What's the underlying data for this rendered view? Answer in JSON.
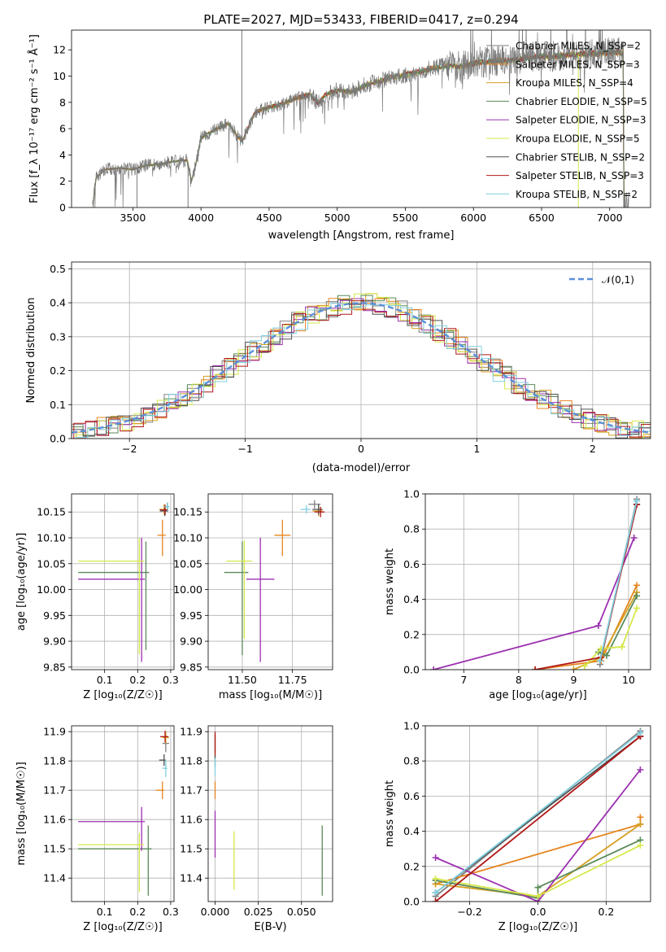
{
  "title": "PLATE=2027, MJD=53433, FIBERID=0417, z=0.294",
  "colors": [
    "#808080",
    "#e6841e",
    "#d4a020",
    "#5a8a5a",
    "#9c30b0",
    "#d6e84a",
    "#505050",
    "#b01818",
    "#80d0e0"
  ],
  "chart_data": [
    {
      "type": "line",
      "panel": "spectrum",
      "xlabel": "wavelength [Angstrom, rest frame]",
      "ylabel": "Flux [f_λ 10⁻¹⁷ erg cm⁻² s⁻¹ Å⁻¹]",
      "xlim": [
        3050,
        7300
      ],
      "ylim": [
        0,
        13.5
      ],
      "xticks": [
        "3500",
        "4000",
        "4500",
        "5000",
        "5500",
        "6000",
        "6500",
        "7000"
      ],
      "yticks": [
        "0",
        "2",
        "4",
        "6",
        "8",
        "10",
        "12"
      ],
      "legend_position": "right",
      "legend": [
        "Chabrier MILES, N_SSP=2",
        "Salpeter MILES, N_SSP=3",
        "Kroupa MILES, N_SSP=4",
        "Chabrier ELODIE, N_SSP=5",
        "Salpeter ELODIE, N_SSP=3",
        "Kroupa ELODIE, N_SSP=5",
        "Chabrier STELIB, N_SSP=2",
        "Salpeter STELIB, N_SSP=3",
        "Kroupa STELIB, N_SSP=2"
      ],
      "continuum": [
        [
          3200,
          0
        ],
        [
          3210,
          0.5
        ],
        [
          3230,
          2.3
        ],
        [
          3300,
          2.9
        ],
        [
          3400,
          3.0
        ],
        [
          3500,
          2.9
        ],
        [
          3600,
          3.2
        ],
        [
          3700,
          3.3
        ],
        [
          3800,
          3.5
        ],
        [
          3900,
          3.6
        ],
        [
          3930,
          2.0
        ],
        [
          3960,
          3.2
        ],
        [
          4000,
          5.3
        ],
        [
          4100,
          5.9
        ],
        [
          4200,
          6.4
        ],
        [
          4300,
          5.0
        ],
        [
          4400,
          7.3
        ],
        [
          4500,
          7.6
        ],
        [
          4600,
          7.9
        ],
        [
          4700,
          8.3
        ],
        [
          4800,
          8.6
        ],
        [
          4860,
          7.9
        ],
        [
          4900,
          8.5
        ],
        [
          5000,
          8.9
        ],
        [
          5100,
          8.8
        ],
        [
          5200,
          9.3
        ],
        [
          5300,
          9.6
        ],
        [
          5400,
          9.9
        ],
        [
          5500,
          10.1
        ],
        [
          5600,
          10.3
        ],
        [
          5700,
          10.6
        ],
        [
          5800,
          10.8
        ],
        [
          5900,
          10.7
        ],
        [
          6000,
          11.0
        ],
        [
          6100,
          11.1
        ],
        [
          6200,
          11.2
        ],
        [
          6300,
          11.2
        ],
        [
          6400,
          11.4
        ],
        [
          6500,
          11.5
        ],
        [
          6600,
          11.5
        ],
        [
          6700,
          11.6
        ],
        [
          6800,
          11.7
        ],
        [
          6900,
          11.7
        ],
        [
          7000,
          11.8
        ],
        [
          7100,
          11.8
        ]
      ]
    },
    {
      "type": "line",
      "panel": "residual-histogram",
      "xlabel": "(data-model)/error",
      "ylabel": "Normed distribution",
      "xlim": [
        -2.5,
        2.5
      ],
      "ylim": [
        0,
        0.52
      ],
      "xticks": [
        "−2",
        "−1",
        "0",
        "1",
        "2"
      ],
      "yticks": [
        "0.0",
        "0.1",
        "0.2",
        "0.3",
        "0.4",
        "0.5"
      ],
      "legend": [
        "𝒩(0,1)"
      ],
      "legend_position": "top-right",
      "gaussian": {
        "mean": 0,
        "sigma": 1
      }
    },
    {
      "type": "scatter",
      "panel": "age-vs-Z",
      "xlabel": "Z [log₁₀(Z/Z☉)]",
      "ylabel": "age  [log₁₀(age/yr)]",
      "xlim": [
        0,
        0.31
      ],
      "ylim": [
        9.845,
        10.185
      ],
      "xticks": [
        "0.1",
        "0.2",
        "0.3"
      ],
      "yticks": [
        "9.85",
        "9.90",
        "9.95",
        "10.00",
        "10.05",
        "10.10",
        "10.15"
      ],
      "points": [
        {
          "x": 0.29,
          "y": 10.16,
          "xerr": [
            0.01,
            0.005
          ],
          "yerr": [
            0.008,
            0.008
          ]
        },
        {
          "x": 0.275,
          "y": 10.105,
          "xerr": [
            0.015,
            0.01
          ],
          "yerr": [
            0.04,
            0.03
          ]
        },
        {
          "x": 0.28,
          "y": 10.155,
          "xerr": [
            0.015,
            0.01
          ],
          "yerr": [
            0.01,
            0.01
          ]
        },
        {
          "x": 0.225,
          "y": 10.033,
          "xerr": [
            0.205,
            0.01
          ],
          "yerr": [
            0.15,
            0.06
          ]
        },
        {
          "x": 0.212,
          "y": 10.02,
          "xerr": [
            0.192,
            0.01
          ],
          "yerr": [
            0.16,
            0.08
          ]
        },
        {
          "x": 0.205,
          "y": 10.055,
          "xerr": [
            0.185,
            0.015
          ],
          "yerr": [
            0.18,
            0.045
          ]
        },
        {
          "x": 0.282,
          "y": 10.152,
          "xerr": [
            0.015,
            0.01
          ],
          "yerr": [
            0.01,
            0.01
          ]
        },
        {
          "x": 0.283,
          "y": 10.154,
          "xerr": [
            0.015,
            0.01
          ],
          "yerr": [
            0.01,
            0.01
          ]
        },
        {
          "x": 0.291,
          "y": 10.16,
          "xerr": [
            0.01,
            0.005
          ],
          "yerr": [
            0.008,
            0.008
          ]
        }
      ]
    },
    {
      "type": "scatter",
      "panel": "age-vs-mass",
      "xlabel": "mass [log₁₀(M/M☉)]",
      "ylabel": "",
      "xlim": [
        11.33,
        11.95
      ],
      "ylim": [
        9.845,
        10.185
      ],
      "xticks": [
        "11.50",
        "11.75"
      ],
      "yticks": [
        "9.85",
        "9.90",
        "9.95",
        "10.00",
        "10.05",
        "10.10",
        "10.15"
      ],
      "points": [
        {
          "x": 11.86,
          "y": 10.165,
          "xerr": [
            0.03,
            0.03
          ],
          "yerr": [
            0.008,
            0.008
          ]
        },
        {
          "x": 11.7,
          "y": 10.105,
          "xerr": [
            0.04,
            0.04
          ],
          "yerr": [
            0.04,
            0.03
          ]
        },
        {
          "x": 11.88,
          "y": 10.152,
          "xerr": [
            0.03,
            0.02
          ],
          "yerr": [
            0.01,
            0.01
          ]
        },
        {
          "x": 11.5,
          "y": 10.033,
          "xerr": [
            0.09,
            0.03
          ],
          "yerr": [
            0.16,
            0.06
          ]
        },
        {
          "x": 11.59,
          "y": 10.02,
          "xerr": [
            0.07,
            0.07
          ],
          "yerr": [
            0.16,
            0.08
          ]
        },
        {
          "x": 11.51,
          "y": 10.055,
          "xerr": [
            0.09,
            0.04
          ],
          "yerr": [
            0.15,
            0.04
          ]
        },
        {
          "x": 11.88,
          "y": 10.155,
          "xerr": [
            0.03,
            0.02
          ],
          "yerr": [
            0.01,
            0.01
          ]
        },
        {
          "x": 11.89,
          "y": 10.15,
          "xerr": [
            0.03,
            0.02
          ],
          "yerr": [
            0.01,
            0.01
          ]
        },
        {
          "x": 11.82,
          "y": 10.155,
          "xerr": [
            0.03,
            0.02
          ],
          "yerr": [
            0.008,
            0.008
          ]
        }
      ]
    },
    {
      "type": "line",
      "panel": "mass-weight-vs-age",
      "xlabel": "age  [log₁₀(age/yr)]",
      "ylabel": "mass weight",
      "xlim": [
        6.3,
        10.4
      ],
      "ylim": [
        0,
        1.0
      ],
      "xticks": [
        "7",
        "8",
        "9",
        "10"
      ],
      "yticks": [
        "0.0",
        "0.2",
        "0.4",
        "0.6",
        "0.8",
        "1.0"
      ],
      "series": [
        {
          "x": [
            9.48,
            10.15
          ],
          "y": [
            0.03,
            0.97
          ]
        },
        {
          "x": [
            8.3,
            9.5,
            10.15
          ],
          "y": [
            0.0,
            0.05,
            0.48
          ]
        },
        {
          "x": [
            9.0,
            9.5,
            10.15
          ],
          "y": [
            0.0,
            0.07,
            0.44
          ]
        },
        {
          "x": [
            9.45,
            9.6,
            10.15
          ],
          "y": [
            0.1,
            0.08,
            0.42
          ]
        },
        {
          "x": [
            6.45,
            9.45,
            10.1
          ],
          "y": [
            0.0,
            0.25,
            0.75
          ]
        },
        {
          "x": [
            9.2,
            9.5,
            9.88,
            10.15
          ],
          "y": [
            0.02,
            0.12,
            0.13,
            0.35
          ]
        },
        {
          "x": [
            9.48,
            10.15
          ],
          "y": [
            0.05,
            0.94
          ]
        },
        {
          "x": [
            8.3,
            9.5,
            10.15
          ],
          "y": [
            0.0,
            0.07,
            0.94
          ]
        },
        {
          "x": [
            9.48,
            10.15
          ],
          "y": [
            0.05,
            0.96
          ]
        }
      ]
    },
    {
      "type": "scatter",
      "panel": "mass-vs-Z",
      "xlabel": "Z [log₁₀(Z/Z☉)]",
      "ylabel": "mass [log₁₀(M/M☉)]",
      "xlim": [
        0,
        0.31
      ],
      "ylim": [
        11.32,
        11.92
      ],
      "xticks": [
        "0.1",
        "0.2",
        "0.3"
      ],
      "yticks": [
        "11.4",
        "11.5",
        "11.6",
        "11.7",
        "11.8",
        "11.9"
      ],
      "points": [
        {
          "x": 0.285,
          "y": 11.86,
          "xerr": [
            0.01,
            0.01
          ],
          "yerr": [
            0.03,
            0.03
          ]
        },
        {
          "x": 0.275,
          "y": 11.7,
          "xerr": [
            0.02,
            0.005
          ],
          "yerr": [
            0.03,
            0.03
          ]
        },
        {
          "x": 0.285,
          "y": 11.88,
          "xerr": [
            0.01,
            0.01
          ],
          "yerr": [
            0.02,
            0.02
          ]
        },
        {
          "x": 0.232,
          "y": 11.5,
          "xerr": [
            0.212,
            0.01
          ],
          "yerr": [
            0.16,
            0.08
          ]
        },
        {
          "x": 0.212,
          "y": 11.593,
          "xerr": [
            0.192,
            0.01
          ],
          "yerr": [
            0.1,
            0.05
          ]
        },
        {
          "x": 0.205,
          "y": 11.514,
          "xerr": [
            0.185,
            0.015
          ],
          "yerr": [
            0.16,
            0.04
          ]
        },
        {
          "x": 0.28,
          "y": 11.803,
          "xerr": [
            0.015,
            0.005
          ],
          "yerr": [
            0.02,
            0.02
          ]
        },
        {
          "x": 0.283,
          "y": 11.883,
          "xerr": [
            0.015,
            0.01
          ],
          "yerr": [
            0.02,
            0.02
          ]
        },
        {
          "x": 0.285,
          "y": 11.775,
          "xerr": [
            0.01,
            0.005
          ],
          "yerr": [
            0.03,
            0.03
          ]
        }
      ]
    },
    {
      "type": "scatter",
      "panel": "mass-vs-EBV",
      "xlabel": "E(B-V)",
      "ylabel": "",
      "xlim": [
        -0.004,
        0.068
      ],
      "ylim": [
        11.32,
        11.92
      ],
      "xticks": [
        "0.000",
        "0.025",
        "0.050"
      ],
      "yticks": [
        "11.4",
        "11.5",
        "11.6",
        "11.7",
        "11.8",
        "11.9"
      ],
      "points": [
        {
          "x": 0.0,
          "y": 11.86,
          "yerr": [
            0.03,
            0.03
          ]
        },
        {
          "x": 0.0,
          "y": 11.7,
          "yerr": [
            0.03,
            0.03
          ]
        },
        {
          "x": 0.0,
          "y": 11.85,
          "yerr": [
            0.04,
            0.04
          ]
        },
        {
          "x": 0.062,
          "y": 11.46,
          "yerr": [
            0.12,
            0.12
          ]
        },
        {
          "x": 0.0,
          "y": 11.55,
          "yerr": [
            0.08,
            0.08
          ]
        },
        {
          "x": 0.011,
          "y": 11.46,
          "yerr": [
            0.1,
            0.1
          ]
        },
        {
          "x": 0.0,
          "y": 11.8,
          "yerr": [
            0.02,
            0.02
          ]
        },
        {
          "x": 0.0,
          "y": 11.86,
          "yerr": [
            0.04,
            0.04
          ]
        },
        {
          "x": 0.0,
          "y": 11.78,
          "yerr": [
            0.03,
            0.03
          ]
        }
      ]
    },
    {
      "type": "line",
      "panel": "mass-weight-vs-Z",
      "xlabel": "Z [log₁₀(Z/Z☉)]",
      "ylabel": "mass weight",
      "xlim": [
        -0.33,
        0.33
      ],
      "ylim": [
        0,
        1.0
      ],
      "xticks": [
        "−0.2",
        "0.0",
        "0.2"
      ],
      "yticks": [
        "0.0",
        "0.2",
        "0.4",
        "0.6",
        "0.8",
        "1.0"
      ],
      "series": [
        {
          "x": [
            -0.3,
            0.3
          ],
          "y": [
            0.03,
            0.97
          ]
        },
        {
          "x": [
            -0.3,
            0.3,
            0.3
          ],
          "y": [
            0.1,
            0.44,
            0.48
          ]
        },
        {
          "x": [
            -0.3,
            0.0,
            0.3
          ],
          "y": [
            0.1,
            0.03,
            0.44
          ]
        },
        {
          "x": [
            -0.3,
            0.0,
            0.0,
            0.3
          ],
          "y": [
            0.12,
            0.02,
            0.08,
            0.35
          ]
        },
        {
          "x": [
            -0.3,
            0.0,
            0.3
          ],
          "y": [
            0.25,
            0.0,
            0.75
          ]
        },
        {
          "x": [
            -0.3,
            0.0,
            0.3
          ],
          "y": [
            0.13,
            0.03,
            0.32
          ]
        },
        {
          "x": [
            -0.3,
            0.3
          ],
          "y": [
            0.05,
            0.94
          ]
        },
        {
          "x": [
            -0.3,
            0.3
          ],
          "y": [
            0.0,
            0.94
          ]
        },
        {
          "x": [
            -0.3,
            0.3
          ],
          "y": [
            0.05,
            0.96
          ]
        }
      ]
    }
  ]
}
